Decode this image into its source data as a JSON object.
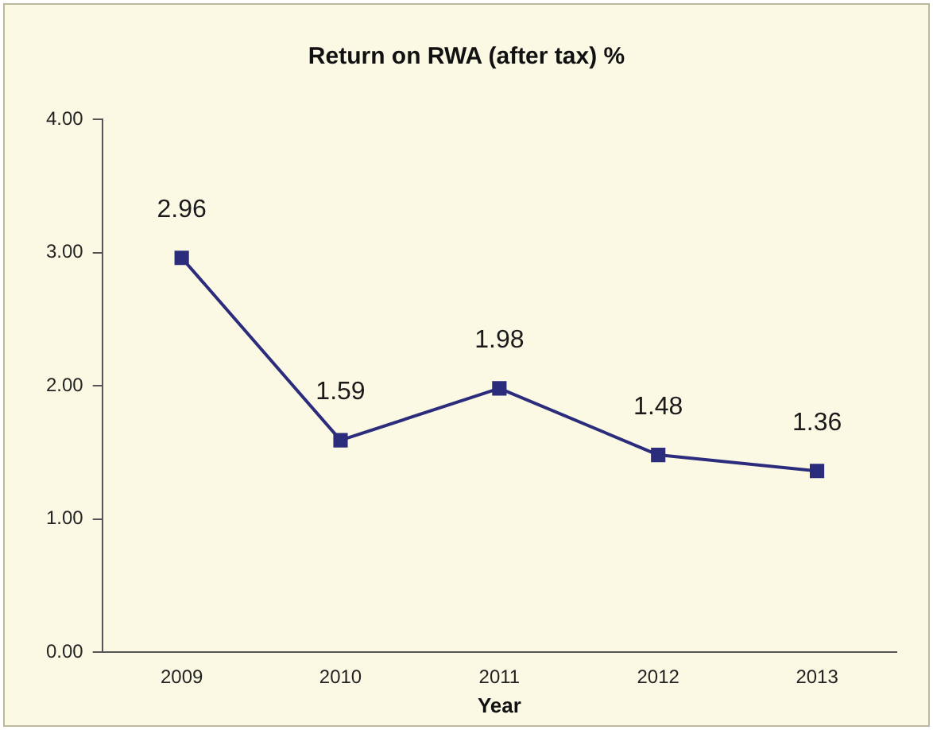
{
  "chart_data": {
    "type": "line",
    "title": "Return on RWA (after tax) %",
    "xlabel": "Year",
    "categories": [
      "2009",
      "2010",
      "2011",
      "2012",
      "2013"
    ],
    "series": [
      {
        "color": "#2b2c7c",
        "values": [
          2.96,
          1.59,
          1.98,
          1.48,
          1.36
        ]
      }
    ],
    "ylim": [
      0,
      4
    ],
    "yticks": [
      {
        "value": 0,
        "label": "0.00"
      },
      {
        "value": 1,
        "label": "1.00"
      },
      {
        "value": 2,
        "label": "2.00"
      },
      {
        "value": 3,
        "label": "3.00"
      },
      {
        "value": 4,
        "label": "4.00"
      }
    ],
    "grid": false,
    "legend": false,
    "marker": "square",
    "line_style": "solid",
    "data_labels": true
  }
}
